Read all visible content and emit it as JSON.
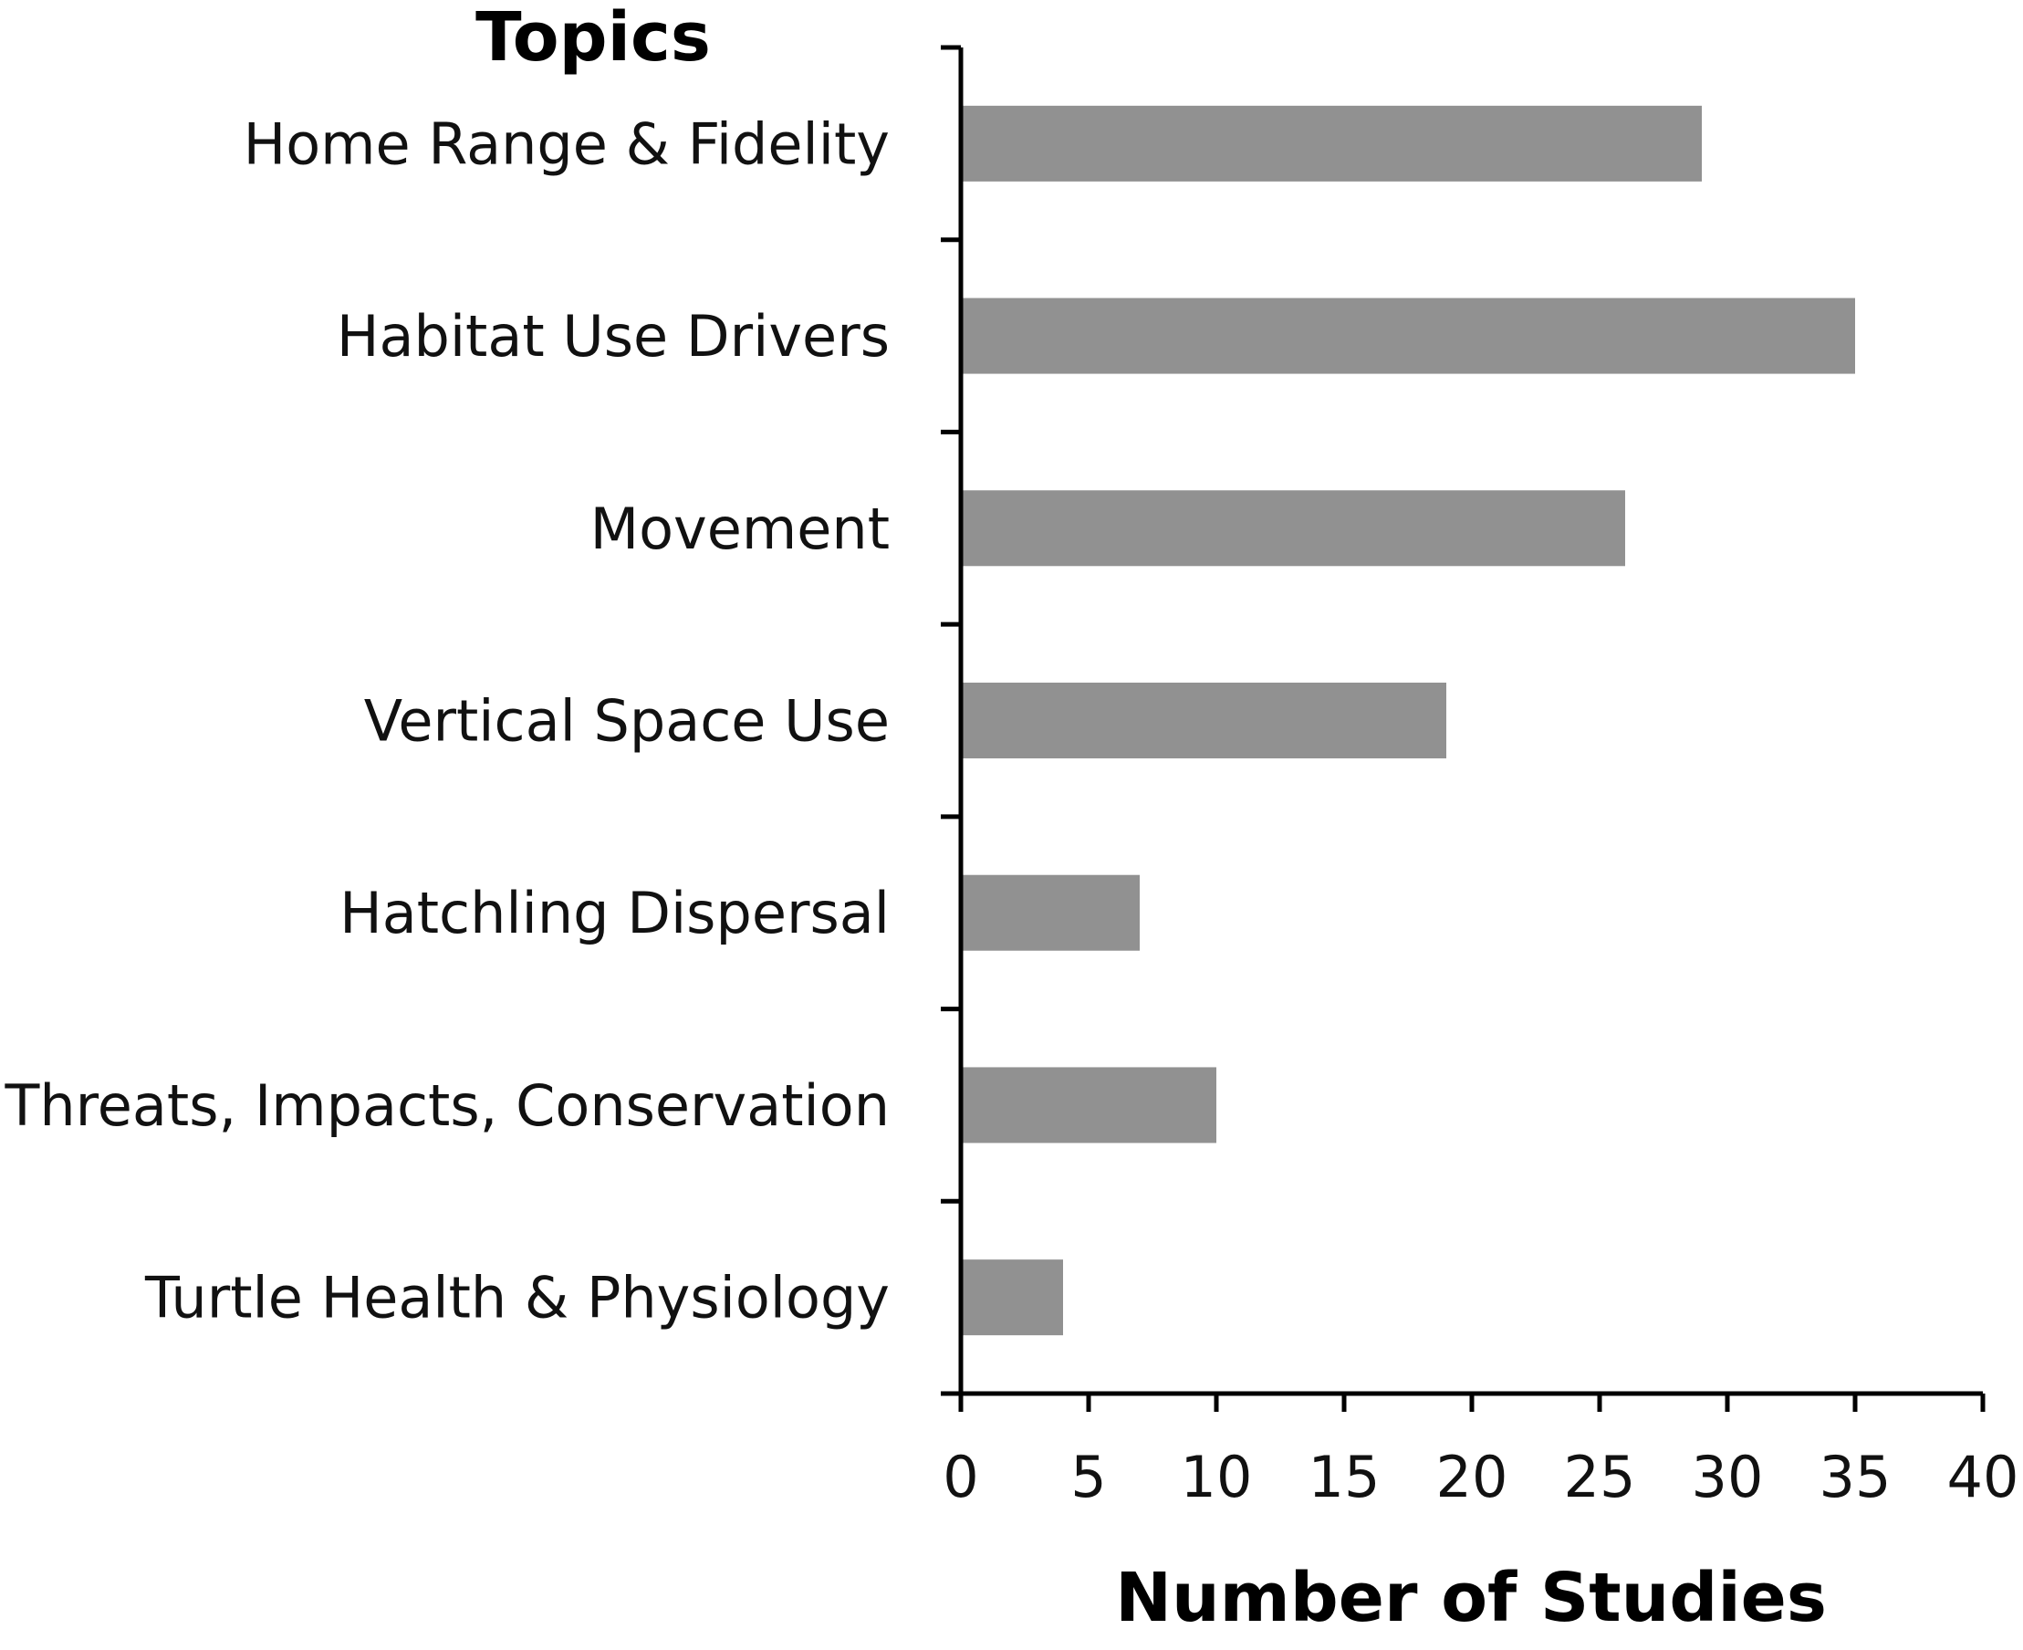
{
  "chart_data": {
    "type": "bar",
    "orientation": "horizontal",
    "categories": [
      "Home Range & Fidelity",
      "Habitat Use Drivers",
      "Movement",
      "Vertical Space Use",
      "Hatchling Dispersal",
      "Threats, Impacts, Conservation",
      "Turtle Health & Physiology"
    ],
    "values": [
      29,
      35,
      26,
      19,
      7,
      10,
      4
    ],
    "ylabel": "Topics",
    "xlabel": "Number of Studies",
    "xlim": [
      0,
      40
    ],
    "xticks": [
      "0",
      "5",
      "10",
      "15",
      "20",
      "25",
      "30",
      "35",
      "40"
    ],
    "grid": false,
    "legend": "none",
    "bar_color": "#919191",
    "axis_color": "#000000"
  }
}
